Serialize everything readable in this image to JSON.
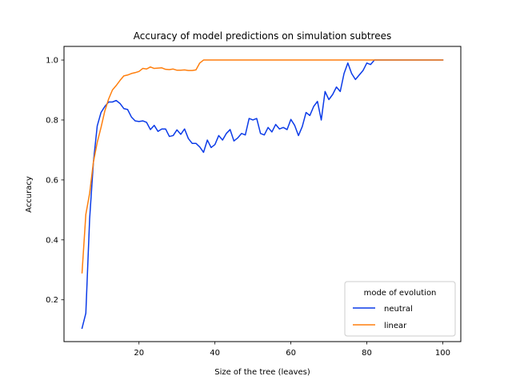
{
  "chart_data": {
    "type": "line",
    "title": "Accuracy of model predictions on simulation subtrees",
    "xlabel": "Size of the tree (leaves)",
    "ylabel": "Accuracy",
    "xlim": [
      0.25,
      104.75
    ],
    "ylim": [
      0.0605,
      1.0455
    ],
    "xticks": [
      20,
      40,
      60,
      80,
      100
    ],
    "yticks": [
      0.2,
      0.4,
      0.6,
      0.8,
      1.0
    ],
    "xtick_labels": [
      "20",
      "40",
      "60",
      "80",
      "100"
    ],
    "ytick_labels": [
      "0.2",
      "0.4",
      "0.6",
      "0.8",
      "1.0"
    ],
    "grid": false,
    "legend": {
      "title": "mode of evolution",
      "placement": "lower-right"
    },
    "series": [
      {
        "name": "neutral",
        "color": "#0b3be8",
        "x": [
          5,
          6,
          7,
          8,
          9,
          10,
          11,
          12,
          13,
          14,
          15,
          16,
          17,
          18,
          19,
          20,
          21,
          22,
          23,
          24,
          25,
          26,
          27,
          28,
          29,
          30,
          31,
          32,
          33,
          34,
          35,
          36,
          37,
          38,
          39,
          40,
          41,
          42,
          43,
          44,
          45,
          46,
          47,
          48,
          49,
          50,
          51,
          52,
          53,
          54,
          55,
          56,
          57,
          58,
          59,
          60,
          61,
          62,
          63,
          64,
          65,
          66,
          67,
          68,
          69,
          70,
          71,
          72,
          73,
          74,
          75,
          76,
          77,
          78,
          79,
          80,
          81,
          82,
          83,
          84,
          85,
          86,
          87,
          88,
          89,
          90,
          91,
          92,
          93,
          94,
          95,
          96,
          97,
          98,
          99,
          100
        ],
        "y": [
          0.105,
          0.155,
          0.47,
          0.66,
          0.78,
          0.825,
          0.845,
          0.86,
          0.86,
          0.865,
          0.855,
          0.838,
          0.835,
          0.81,
          0.797,
          0.795,
          0.797,
          0.792,
          0.768,
          0.782,
          0.762,
          0.77,
          0.77,
          0.745,
          0.748,
          0.767,
          0.752,
          0.77,
          0.738,
          0.722,
          0.722,
          0.71,
          0.692,
          0.733,
          0.708,
          0.718,
          0.748,
          0.733,
          0.755,
          0.768,
          0.73,
          0.74,
          0.755,
          0.75,
          0.805,
          0.8,
          0.805,
          0.755,
          0.75,
          0.775,
          0.76,
          0.785,
          0.77,
          0.775,
          0.768,
          0.802,
          0.782,
          0.748,
          0.778,
          0.825,
          0.815,
          0.845,
          0.862,
          0.8,
          0.895,
          0.868,
          0.885,
          0.91,
          0.895,
          0.955,
          0.99,
          0.955,
          0.935,
          0.95,
          0.965,
          0.99,
          0.985,
          1.0,
          1.0,
          1.0,
          1.0,
          1.0,
          1.0,
          1.0,
          1.0,
          1.0,
          1.0,
          1.0,
          1.0,
          1.0,
          1.0,
          1.0,
          1.0,
          1.0,
          1.0,
          1.0
        ]
      },
      {
        "name": "linear",
        "color": "#ff7f0e",
        "x": [
          5,
          6,
          7,
          8,
          9,
          10,
          11,
          12,
          13,
          14,
          15,
          16,
          17,
          18,
          19,
          20,
          21,
          22,
          23,
          24,
          25,
          26,
          27,
          28,
          29,
          30,
          31,
          32,
          33,
          34,
          35,
          36,
          37,
          38,
          39,
          40,
          45,
          50,
          55,
          60,
          65,
          70,
          75,
          80,
          85,
          90,
          95,
          100
        ],
        "y": [
          0.29,
          0.485,
          0.555,
          0.66,
          0.725,
          0.775,
          0.83,
          0.87,
          0.9,
          0.915,
          0.932,
          0.947,
          0.95,
          0.955,
          0.958,
          0.962,
          0.972,
          0.97,
          0.977,
          0.972,
          0.973,
          0.974,
          0.969,
          0.968,
          0.97,
          0.966,
          0.966,
          0.967,
          0.965,
          0.965,
          0.967,
          0.99,
          1.0,
          1.0,
          1.0,
          1.0,
          1.0,
          1.0,
          1.0,
          1.0,
          1.0,
          1.0,
          1.0,
          1.0,
          1.0,
          1.0,
          1.0,
          1.0
        ]
      }
    ]
  }
}
